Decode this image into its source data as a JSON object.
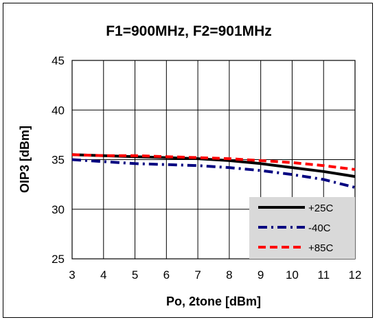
{
  "chart_data": {
    "type": "line",
    "title": "F1=900MHz, F2=901MHz",
    "xlabel": "Po, 2tone [dBm]",
    "ylabel": "OIP3 [dBm]",
    "xlim": [
      3,
      12
    ],
    "ylim": [
      25,
      45
    ],
    "x_ticks": [
      "3",
      "4",
      "5",
      "6",
      "7",
      "8",
      "9",
      "10",
      "11",
      "12"
    ],
    "y_ticks": [
      "25",
      "30",
      "35",
      "40",
      "45"
    ],
    "grid": true,
    "legend_position": "bottom-right",
    "x": [
      3,
      4,
      5,
      6,
      7,
      8,
      9,
      10,
      11,
      12
    ],
    "series": [
      {
        "name": "+25C",
        "color": "#000000",
        "dash": "solid",
        "values": [
          35.5,
          35.4,
          35.3,
          35.2,
          35.1,
          34.9,
          34.6,
          34.2,
          33.8,
          33.3
        ]
      },
      {
        "name": "-40C",
        "color": "#000080",
        "dash": "dashdot",
        "values": [
          35.0,
          34.8,
          34.6,
          34.5,
          34.4,
          34.2,
          33.9,
          33.5,
          33.0,
          32.2
        ]
      },
      {
        "name": "+85C",
        "color": "#ff0000",
        "dash": "dashed",
        "values": [
          35.5,
          35.4,
          35.4,
          35.3,
          35.2,
          35.1,
          34.9,
          34.7,
          34.4,
          34.0
        ]
      }
    ]
  }
}
